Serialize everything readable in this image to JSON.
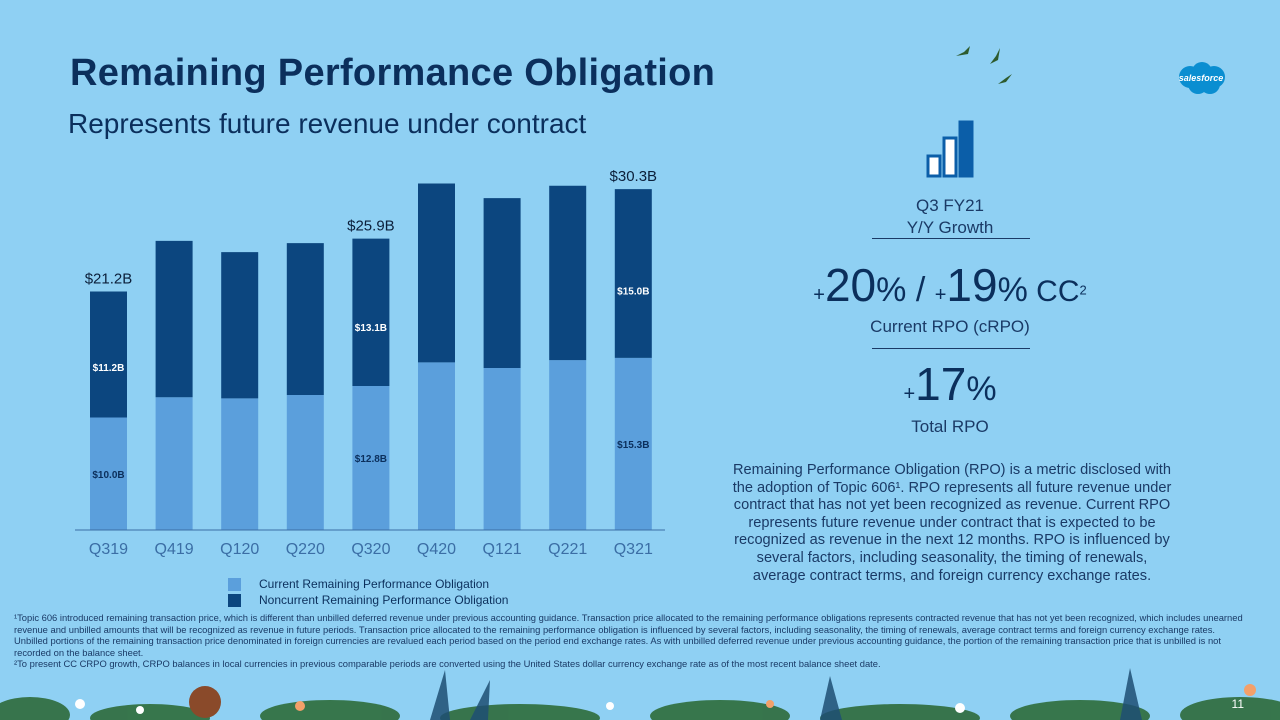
{
  "header": {
    "title": "Remaining Performance Obligation",
    "subtitle": "Represents future revenue under contract",
    "logo_text": "salesforce"
  },
  "colors": {
    "background": "#8fd0f3",
    "current": "#5b9fdc",
    "noncurrent": "#0c467f",
    "text_dark": "#0b2f5c"
  },
  "chart_data": {
    "type": "bar",
    "stacked": true,
    "categories": [
      "Q319",
      "Q419",
      "Q120",
      "Q220",
      "Q320",
      "Q420",
      "Q121",
      "Q221",
      "Q321"
    ],
    "series": [
      {
        "name": "Current Remaining Performance Obligation",
        "values": [
          10.0,
          11.8,
          11.7,
          12.0,
          12.8,
          14.9,
          14.4,
          15.1,
          15.3
        ]
      },
      {
        "name": "Noncurrent Remaining Performance Obligation",
        "values": [
          11.2,
          13.9,
          13.0,
          13.5,
          13.1,
          15.9,
          15.1,
          15.5,
          15.0
        ]
      }
    ],
    "segment_labels": [
      {
        "category": "Q319",
        "current": "$10.0B",
        "noncurrent": "$11.2B"
      },
      {
        "category": "Q320",
        "current": "$12.8B",
        "noncurrent": "$13.1B"
      },
      {
        "category": "Q321",
        "current": "$15.3B",
        "noncurrent": "$15.0B"
      }
    ],
    "total_labels": [
      {
        "category": "Q319",
        "label": "$21.2B"
      },
      {
        "category": "Q320",
        "label": "$25.9B"
      },
      {
        "category": "Q321",
        "label": "$30.3B"
      }
    ],
    "ylim": [
      0,
      32
    ],
    "grid": false,
    "legend": "bottom-left"
  },
  "legend": {
    "current": "Current Remaining Performance Obligation",
    "noncurrent": "Noncurrent Remaining Performance Obligation"
  },
  "growth": {
    "icon": "bar-chart-icon",
    "period": "Q3 FY21",
    "period_sub": "Y/Y Growth",
    "crpo_plus": "+",
    "crpo_value": "20",
    "crpo_pct": "%",
    "sep": " / ",
    "cc_plus": "+",
    "cc_value": "19",
    "cc_pct": "%",
    "cc_label": " CC",
    "cc_sup": "2",
    "crpo_caption": "Current RPO (cRPO)",
    "total_plus": "+",
    "total_value": "17",
    "total_pct": "%",
    "total_caption": "Total RPO"
  },
  "description": "Remaining Performance Obligation (RPO) is a metric disclosed with the adoption of Topic 606¹. RPO represents all future revenue under contract that has not yet been recognized as revenue. Current RPO represents future revenue under contract that is expected to be recognized as revenue in the next 12 months. RPO is influenced by several factors, including seasonality, the timing of renewals, average contract terms, and foreign currency exchange rates.",
  "footnotes": {
    "note1": "¹Topic 606 introduced remaining transaction price, which is different than unbilled deferred revenue under previous accounting guidance. Transaction price allocated to the remaining performance obligations represents contracted revenue that has not yet been recognized, which includes unearned revenue and unbilled amounts that will be recognized as revenue in future periods. Transaction price allocated to the remaining performance obligation is influenced by several factors, including seasonality, the timing of renewals, average contract terms and foreign currency exchange rates. Unbilled portions of the remaining transaction price denominated in foreign currencies are revalued each period based on the period end exchange rates. As with unbilled deferred revenue under previous accounting guidance, the portion of the remaining transaction price that is unbilled is not recorded on the balance sheet.",
    "note2": "²To present CC CRPO growth, CRPO balances in local currencies in previous comparable periods are converted using the United States dollar currency exchange rate as of the most recent balance sheet date."
  },
  "page_number": "11"
}
